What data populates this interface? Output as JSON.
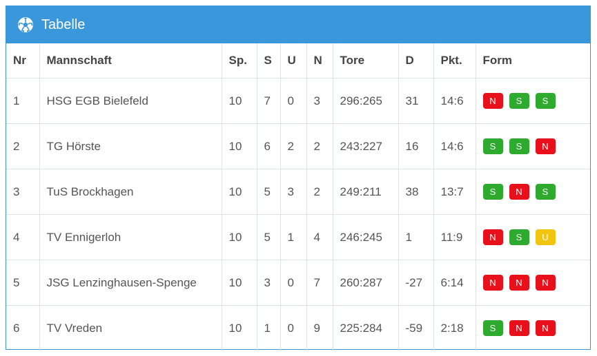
{
  "panel": {
    "title": "Tabelle",
    "icon": "soccer-ball-icon"
  },
  "columns": [
    "Nr",
    "Mannschaft",
    "Sp.",
    "S",
    "U",
    "N",
    "Tore",
    "D",
    "Pkt.",
    "Form"
  ],
  "rows": [
    {
      "nr": "1",
      "team": "HSG EGB Bielefeld",
      "sp": "10",
      "s": "7",
      "u": "0",
      "n": "3",
      "tore": "296:265",
      "d": "31",
      "pkt": "14:6",
      "form": [
        "N",
        "S",
        "S"
      ]
    },
    {
      "nr": "2",
      "team": "TG Hörste",
      "sp": "10",
      "s": "6",
      "u": "2",
      "n": "2",
      "tore": "243:227",
      "d": "16",
      "pkt": "14:6",
      "form": [
        "S",
        "S",
        "N"
      ]
    },
    {
      "nr": "3",
      "team": "TuS Brockhagen",
      "sp": "10",
      "s": "5",
      "u": "3",
      "n": "2",
      "tore": "249:211",
      "d": "38",
      "pkt": "13:7",
      "form": [
        "S",
        "N",
        "S"
      ]
    },
    {
      "nr": "4",
      "team": "TV Ennigerloh",
      "sp": "10",
      "s": "5",
      "u": "1",
      "n": "4",
      "tore": "246:245",
      "d": "1",
      "pkt": "11:9",
      "form": [
        "N",
        "S",
        "U"
      ]
    },
    {
      "nr": "5",
      "team": "JSG Lenzinghausen-Spenge",
      "sp": "10",
      "s": "3",
      "u": "0",
      "n": "7",
      "tore": "260:287",
      "d": "-27",
      "pkt": "6:14",
      "form": [
        "N",
        "N",
        "N"
      ]
    },
    {
      "nr": "6",
      "team": "TV Vreden",
      "sp": "10",
      "s": "1",
      "u": "0",
      "n": "9",
      "tore": "225:284",
      "d": "-59",
      "pkt": "2:18",
      "form": [
        "S",
        "N",
        "N"
      ]
    }
  ],
  "colors": {
    "header": "#3a97dc",
    "win": "#2eab2e",
    "loss": "#e8101a",
    "draw": "#f1c40f"
  }
}
